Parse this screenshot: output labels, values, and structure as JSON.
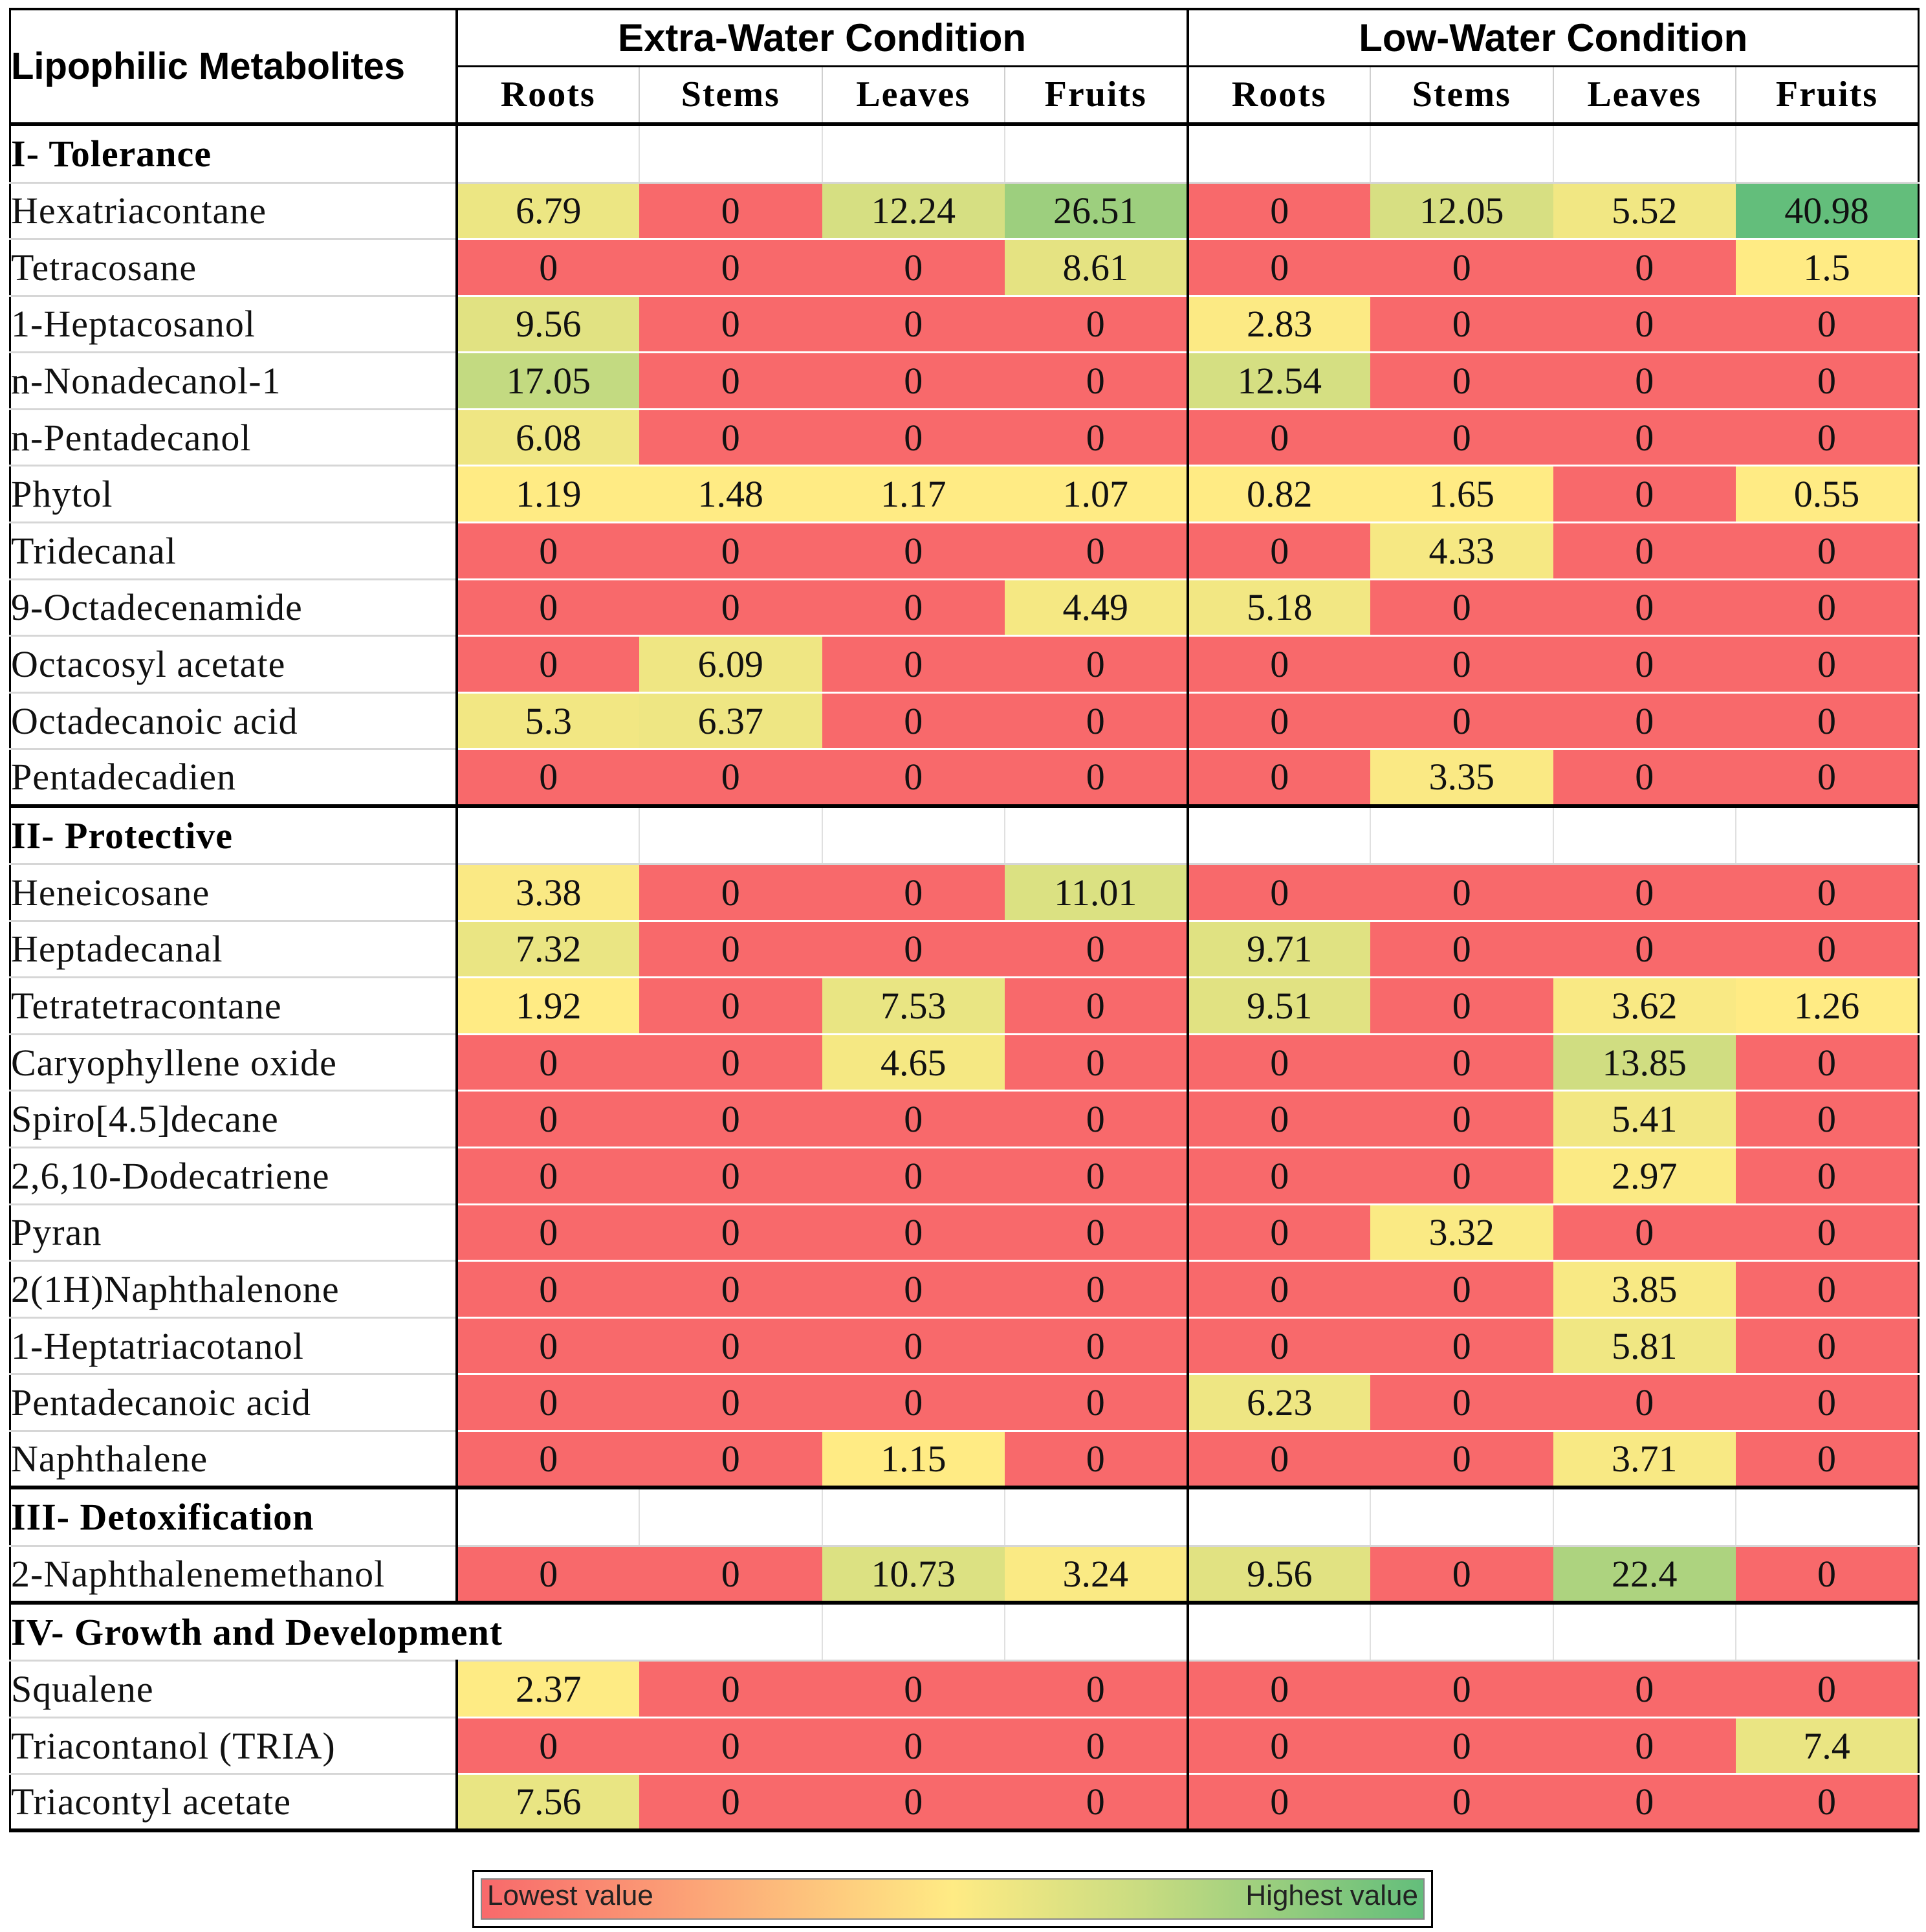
{
  "table": {
    "title": "Lipophilic Metabolites",
    "conditions": [
      "Extra-Water Condition",
      "Low-Water Condition"
    ],
    "parts": [
      "Roots",
      "Stems",
      "Leaves",
      "Fruits"
    ],
    "sections": [
      {
        "label": "I- Tolerance",
        "rows": [
          {
            "name": "Hexatriacontane",
            "values": [
              "6.79",
              "0",
              "12.24",
              "26.51",
              "0",
              "12.05",
              "5.52",
              "40.98"
            ]
          },
          {
            "name": "Tetracosane",
            "values": [
              "0",
              "0",
              "0",
              "8.61",
              "0",
              "0",
              "0",
              "1.5"
            ]
          },
          {
            "name": "1-Heptacosanol",
            "values": [
              "9.56",
              "0",
              "0",
              "0",
              "2.83",
              "0",
              "0",
              "0"
            ]
          },
          {
            "name": "n-Nonadecanol-1",
            "values": [
              "17.05",
              "0",
              "0",
              "0",
              "12.54",
              "0",
              "0",
              "0"
            ]
          },
          {
            "name": "n-Pentadecanol",
            "values": [
              "6.08",
              "0",
              "0",
              "0",
              "0",
              "0",
              "0",
              "0"
            ]
          },
          {
            "name": "Phytol",
            "values": [
              "1.19",
              "1.48",
              "1.17",
              "1.07",
              "0.82",
              "1.65",
              "0",
              "0.55"
            ]
          },
          {
            "name": "Tridecanal",
            "values": [
              "0",
              "0",
              "0",
              "0",
              "0",
              "4.33",
              "0",
              "0"
            ]
          },
          {
            "name": "9-Octadecenamide",
            "values": [
              "0",
              "0",
              "0",
              "4.49",
              "5.18",
              "0",
              "0",
              "0"
            ]
          },
          {
            "name": "Octacosyl acetate",
            "values": [
              "0",
              "6.09",
              "0",
              "0",
              "0",
              "0",
              "0",
              "0"
            ]
          },
          {
            "name": "Octadecanoic acid",
            "values": [
              "5.3",
              "6.37",
              "0",
              "0",
              "0",
              "0",
              "0",
              "0"
            ]
          },
          {
            "name": "Pentadecadien",
            "values": [
              "0",
              "0",
              "0",
              "0",
              "0",
              "3.35",
              "0",
              "0"
            ]
          }
        ]
      },
      {
        "label": "II- Protective",
        "rows": [
          {
            "name": "Heneicosane",
            "values": [
              "3.38",
              "0",
              "0",
              "11.01",
              "0",
              "0",
              "0",
              "0"
            ]
          },
          {
            "name": "Heptadecanal",
            "values": [
              "7.32",
              "0",
              "0",
              "0",
              "9.71",
              "0",
              "0",
              "0"
            ]
          },
          {
            "name": "Tetratetracontane",
            "values": [
              "1.92",
              "0",
              "7.53",
              "0",
              "9.51",
              "0",
              "3.62",
              "1.26"
            ]
          },
          {
            "name": "Caryophyllene oxide",
            "values": [
              "0",
              "0",
              "4.65",
              "0",
              "0",
              "0",
              "13.85",
              "0"
            ]
          },
          {
            "name": "Spiro[4.5]decane",
            "values": [
              "0",
              "0",
              "0",
              "0",
              "0",
              "0",
              "5.41",
              "0"
            ]
          },
          {
            "name": "2,6,10-Dodecatriene",
            "values": [
              "0",
              "0",
              "0",
              "0",
              "0",
              "0",
              "2.97",
              "0"
            ]
          },
          {
            "name": "Pyran",
            "values": [
              "0",
              "0",
              "0",
              "0",
              "0",
              "3.32",
              "0",
              "0"
            ]
          },
          {
            "name": "2(1H)Naphthalenone",
            "values": [
              "0",
              "0",
              "0",
              "0",
              "0",
              "0",
              "3.85",
              "0"
            ]
          },
          {
            "name": "1-Heptatriacotanol",
            "values": [
              "0",
              "0",
              "0",
              "0",
              "0",
              "0",
              "5.81",
              "0"
            ]
          },
          {
            "name": "Pentadecanoic acid",
            "values": [
              "0",
              "0",
              "0",
              "0",
              "6.23",
              "0",
              "0",
              "0"
            ]
          },
          {
            "name": "Naphthalene",
            "values": [
              "0",
              "0",
              "1.15",
              "0",
              "0",
              "0",
              "3.71",
              "0"
            ]
          }
        ]
      },
      {
        "label": "III- Detoxification",
        "rows": [
          {
            "name": "2-Naphthalenemethanol",
            "values": [
              "0",
              "0",
              "10.73",
              "3.24",
              "9.56",
              "0",
              "22.4",
              "0"
            ]
          }
        ]
      },
      {
        "label": "IV- Growth and Development",
        "wide": true,
        "rows": [
          {
            "name": "Squalene",
            "values": [
              "2.37",
              "0",
              "0",
              "0",
              "0",
              "0",
              "0",
              "0"
            ]
          },
          {
            "name": "Triacontanol (TRIA)",
            "values": [
              "0",
              "0",
              "0",
              "0",
              "0",
              "0",
              "0",
              "7.4"
            ]
          },
          {
            "name": "Triacontyl acetate",
            "values": [
              "7.56",
              "0",
              "0",
              "0",
              "0",
              "0",
              "0",
              "0"
            ]
          }
        ]
      }
    ]
  },
  "legend": {
    "low_label": "Lowest value",
    "high_label": "Highest value",
    "colors": {
      "low": "#f8696b",
      "mid": "#ffeb84",
      "high": "#63be7b"
    }
  }
}
